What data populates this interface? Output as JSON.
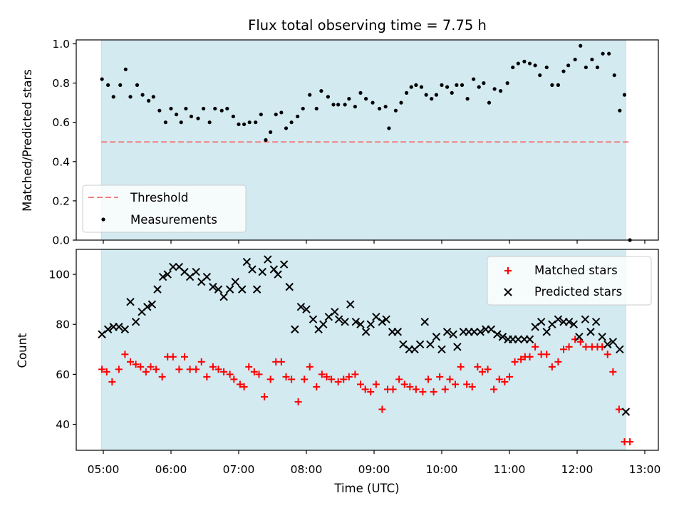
{
  "chart_data": {
    "type": "scatter",
    "title": "Flux total observing time = 7.75 h",
    "xlabel": "Time (UTC)",
    "x_tick_labels": [
      "05:00",
      "06:00",
      "07:00",
      "08:00",
      "09:00",
      "10:00",
      "11:00",
      "12:00",
      "13:00"
    ],
    "x_range_hours": [
      4.6,
      13.2
    ],
    "shaded_region_hours": [
      4.97,
      12.72
    ],
    "shade_color": "#d3eaf1",
    "top": {
      "ylabel": "Matched/Predicted stars",
      "ylim": [
        0,
        1.02
      ],
      "yticks": [
        "0.0",
        "0.2",
        "0.4",
        "0.6",
        "0.8",
        "1.0"
      ],
      "ytick_values": [
        0,
        0.2,
        0.4,
        0.6,
        0.8,
        1.0
      ],
      "legend": {
        "placement": "lower-left",
        "threshold_label": "Threshold",
        "measurements_label": "Measurements"
      },
      "threshold": {
        "value": 0.5,
        "x_start": 4.97,
        "x_end": 12.78,
        "color": "#f08080"
      },
      "measurement_color": "#000000",
      "measurements": [
        [
          4.98,
          0.82
        ],
        [
          5.07,
          0.79
        ],
        [
          5.15,
          0.73
        ],
        [
          5.25,
          0.79
        ],
        [
          5.33,
          0.87
        ],
        [
          5.4,
          0.73
        ],
        [
          5.5,
          0.79
        ],
        [
          5.58,
          0.74
        ],
        [
          5.67,
          0.71
        ],
        [
          5.74,
          0.73
        ],
        [
          5.83,
          0.66
        ],
        [
          5.92,
          0.6
        ],
        [
          6.0,
          0.67
        ],
        [
          6.08,
          0.64
        ],
        [
          6.15,
          0.6
        ],
        [
          6.22,
          0.67
        ],
        [
          6.3,
          0.63
        ],
        [
          6.4,
          0.62
        ],
        [
          6.48,
          0.67
        ],
        [
          6.57,
          0.6
        ],
        [
          6.65,
          0.67
        ],
        [
          6.75,
          0.66
        ],
        [
          6.83,
          0.67
        ],
        [
          6.92,
          0.63
        ],
        [
          7.0,
          0.59
        ],
        [
          7.08,
          0.59
        ],
        [
          7.16,
          0.6
        ],
        [
          7.25,
          0.6
        ],
        [
          7.33,
          0.64
        ],
        [
          7.4,
          0.51
        ],
        [
          7.47,
          0.55
        ],
        [
          7.55,
          0.64
        ],
        [
          7.63,
          0.65
        ],
        [
          7.7,
          0.57
        ],
        [
          7.78,
          0.6
        ],
        [
          7.87,
          0.63
        ],
        [
          7.95,
          0.67
        ],
        [
          8.05,
          0.74
        ],
        [
          8.15,
          0.67
        ],
        [
          8.22,
          0.76
        ],
        [
          8.32,
          0.73
        ],
        [
          8.4,
          0.69
        ],
        [
          8.47,
          0.69
        ],
        [
          8.57,
          0.69
        ],
        [
          8.63,
          0.72
        ],
        [
          8.72,
          0.68
        ],
        [
          8.8,
          0.75
        ],
        [
          8.88,
          0.72
        ],
        [
          8.98,
          0.7
        ],
        [
          9.08,
          0.67
        ],
        [
          9.17,
          0.68
        ],
        [
          9.22,
          0.57
        ],
        [
          9.32,
          0.66
        ],
        [
          9.4,
          0.7
        ],
        [
          9.48,
          0.75
        ],
        [
          9.55,
          0.78
        ],
        [
          9.62,
          0.79
        ],
        [
          9.7,
          0.78
        ],
        [
          9.77,
          0.74
        ],
        [
          9.85,
          0.72
        ],
        [
          9.92,
          0.74
        ],
        [
          10.0,
          0.79
        ],
        [
          10.08,
          0.78
        ],
        [
          10.15,
          0.75
        ],
        [
          10.22,
          0.79
        ],
        [
          10.3,
          0.79
        ],
        [
          10.38,
          0.72
        ],
        [
          10.47,
          0.82
        ],
        [
          10.55,
          0.78
        ],
        [
          10.62,
          0.8
        ],
        [
          10.7,
          0.7
        ],
        [
          10.78,
          0.77
        ],
        [
          10.87,
          0.76
        ],
        [
          10.97,
          0.8
        ],
        [
          11.05,
          0.88
        ],
        [
          11.13,
          0.9
        ],
        [
          11.22,
          0.91
        ],
        [
          11.3,
          0.9
        ],
        [
          11.38,
          0.89
        ],
        [
          11.45,
          0.84
        ],
        [
          11.55,
          0.88
        ],
        [
          11.63,
          0.79
        ],
        [
          11.72,
          0.79
        ],
        [
          11.8,
          0.86
        ],
        [
          11.87,
          0.89
        ],
        [
          11.97,
          0.92
        ],
        [
          12.05,
          0.99
        ],
        [
          12.13,
          0.88
        ],
        [
          12.22,
          0.92
        ],
        [
          12.3,
          0.88
        ],
        [
          12.38,
          0.95
        ],
        [
          12.47,
          0.95
        ],
        [
          12.55,
          0.84
        ],
        [
          12.63,
          0.66
        ],
        [
          12.7,
          0.74
        ],
        [
          12.78,
          0.0
        ]
      ]
    },
    "bottom": {
      "ylabel": "Count",
      "ylim": [
        29.6,
        110
      ],
      "yticks": [
        "40",
        "60",
        "80",
        "100"
      ],
      "ytick_values": [
        40,
        60,
        80,
        100
      ],
      "legend": {
        "placement": "upper-right"
      },
      "series": [
        {
          "name": "Matched stars",
          "marker": "+",
          "color": "#ff0000",
          "points": [
            [
              4.98,
              62
            ],
            [
              5.05,
              61
            ],
            [
              5.13,
              57
            ],
            [
              5.23,
              62
            ],
            [
              5.32,
              68
            ],
            [
              5.4,
              65
            ],
            [
              5.48,
              64
            ],
            [
              5.55,
              63
            ],
            [
              5.63,
              61
            ],
            [
              5.7,
              63
            ],
            [
              5.78,
              62
            ],
            [
              5.87,
              59
            ],
            [
              5.95,
              67
            ],
            [
              6.03,
              67
            ],
            [
              6.12,
              62
            ],
            [
              6.2,
              67
            ],
            [
              6.28,
              62
            ],
            [
              6.37,
              62
            ],
            [
              6.45,
              65
            ],
            [
              6.53,
              59
            ],
            [
              6.62,
              63
            ],
            [
              6.7,
              62
            ],
            [
              6.78,
              61
            ],
            [
              6.87,
              60
            ],
            [
              6.93,
              58
            ],
            [
              7.02,
              56
            ],
            [
              7.08,
              55
            ],
            [
              7.15,
              63
            ],
            [
              7.23,
              61
            ],
            [
              7.3,
              60
            ],
            [
              7.38,
              51
            ],
            [
              7.47,
              58
            ],
            [
              7.55,
              65
            ],
            [
              7.63,
              65
            ],
            [
              7.7,
              59
            ],
            [
              7.78,
              58
            ],
            [
              7.88,
              49
            ],
            [
              7.97,
              58
            ],
            [
              8.05,
              63
            ],
            [
              8.15,
              55
            ],
            [
              8.23,
              60
            ],
            [
              8.3,
              59
            ],
            [
              8.37,
              58
            ],
            [
              8.47,
              57
            ],
            [
              8.55,
              58
            ],
            [
              8.63,
              59
            ],
            [
              8.72,
              60
            ],
            [
              8.8,
              56
            ],
            [
              8.87,
              54
            ],
            [
              8.95,
              53
            ],
            [
              9.03,
              56
            ],
            [
              9.12,
              46
            ],
            [
              9.2,
              54
            ],
            [
              9.28,
              54
            ],
            [
              9.37,
              58
            ],
            [
              9.45,
              56
            ],
            [
              9.53,
              55
            ],
            [
              9.62,
              54
            ],
            [
              9.72,
              53
            ],
            [
              9.8,
              58
            ],
            [
              9.88,
              53
            ],
            [
              9.97,
              59
            ],
            [
              10.05,
              54
            ],
            [
              10.12,
              58
            ],
            [
              10.2,
              56
            ],
            [
              10.28,
              63
            ],
            [
              10.37,
              56
            ],
            [
              10.45,
              55
            ],
            [
              10.53,
              63
            ],
            [
              10.6,
              61
            ],
            [
              10.68,
              62
            ],
            [
              10.77,
              54
            ],
            [
              10.85,
              58
            ],
            [
              10.93,
              57
            ],
            [
              11.0,
              59
            ],
            [
              11.08,
              65
            ],
            [
              11.17,
              66
            ],
            [
              11.23,
              67
            ],
            [
              11.3,
              67
            ],
            [
              11.38,
              71
            ],
            [
              11.47,
              68
            ],
            [
              11.55,
              68
            ],
            [
              11.63,
              63
            ],
            [
              11.72,
              65
            ],
            [
              11.8,
              70
            ],
            [
              11.88,
              71
            ],
            [
              11.97,
              74
            ],
            [
              12.05,
              73
            ],
            [
              12.13,
              71
            ],
            [
              12.22,
              71
            ],
            [
              12.3,
              71
            ],
            [
              12.37,
              71
            ],
            [
              12.45,
              68
            ],
            [
              12.53,
              61
            ],
            [
              12.62,
              46
            ],
            [
              12.7,
              33
            ],
            [
              12.78,
              33
            ]
          ]
        },
        {
          "name": "Predicted stars",
          "marker": "x",
          "color": "#000000",
          "points": [
            [
              4.98,
              76
            ],
            [
              5.07,
              78
            ],
            [
              5.15,
              79
            ],
            [
              5.23,
              79
            ],
            [
              5.32,
              78
            ],
            [
              5.4,
              89
            ],
            [
              5.48,
              81
            ],
            [
              5.57,
              85
            ],
            [
              5.65,
              87
            ],
            [
              5.72,
              88
            ],
            [
              5.8,
              94
            ],
            [
              5.88,
              99
            ],
            [
              5.95,
              100
            ],
            [
              6.03,
              103
            ],
            [
              6.12,
              103
            ],
            [
              6.2,
              101
            ],
            [
              6.28,
              99
            ],
            [
              6.37,
              101
            ],
            [
              6.45,
              97
            ],
            [
              6.53,
              99
            ],
            [
              6.62,
              95
            ],
            [
              6.7,
              94
            ],
            [
              6.78,
              91
            ],
            [
              6.87,
              94
            ],
            [
              6.95,
              97
            ],
            [
              7.05,
              94
            ],
            [
              7.12,
              105
            ],
            [
              7.2,
              102
            ],
            [
              7.27,
              94
            ],
            [
              7.35,
              101
            ],
            [
              7.43,
              106
            ],
            [
              7.52,
              102
            ],
            [
              7.58,
              100
            ],
            [
              7.67,
              104
            ],
            [
              7.75,
              95
            ],
            [
              7.83,
              78
            ],
            [
              7.92,
              87
            ],
            [
              8.0,
              86
            ],
            [
              8.1,
              82
            ],
            [
              8.18,
              78
            ],
            [
              8.25,
              80
            ],
            [
              8.33,
              83
            ],
            [
              8.42,
              85
            ],
            [
              8.48,
              82
            ],
            [
              8.57,
              81
            ],
            [
              8.65,
              88
            ],
            [
              8.73,
              81
            ],
            [
              8.8,
              80
            ],
            [
              8.88,
              77
            ],
            [
              8.95,
              80
            ],
            [
              9.03,
              83
            ],
            [
              9.12,
              81
            ],
            [
              9.18,
              82
            ],
            [
              9.27,
              77
            ],
            [
              9.35,
              77
            ],
            [
              9.43,
              72
            ],
            [
              9.52,
              70
            ],
            [
              9.6,
              70
            ],
            [
              9.68,
              72
            ],
            [
              9.75,
              81
            ],
            [
              9.83,
              72
            ],
            [
              9.92,
              75
            ],
            [
              10.0,
              70
            ],
            [
              10.08,
              77
            ],
            [
              10.17,
              76
            ],
            [
              10.23,
              71
            ],
            [
              10.32,
              77
            ],
            [
              10.4,
              77
            ],
            [
              10.48,
              77
            ],
            [
              10.57,
              77
            ],
            [
              10.65,
              78
            ],
            [
              10.73,
              78
            ],
            [
              10.82,
              76
            ],
            [
              10.9,
              75
            ],
            [
              10.98,
              74
            ],
            [
              11.05,
              74
            ],
            [
              11.13,
              74
            ],
            [
              11.22,
              74
            ],
            [
              11.3,
              74
            ],
            [
              11.38,
              79
            ],
            [
              11.47,
              81
            ],
            [
              11.55,
              77
            ],
            [
              11.63,
              80
            ],
            [
              11.72,
              82
            ],
            [
              11.8,
              81
            ],
            [
              11.88,
              81
            ],
            [
              11.95,
              80
            ],
            [
              12.03,
              75
            ],
            [
              12.12,
              82
            ],
            [
              12.2,
              77
            ],
            [
              12.28,
              81
            ],
            [
              12.37,
              75
            ],
            [
              12.45,
              72
            ],
            [
              12.53,
              73
            ],
            [
              12.63,
              70
            ],
            [
              12.72,
              45
            ]
          ]
        }
      ]
    }
  }
}
